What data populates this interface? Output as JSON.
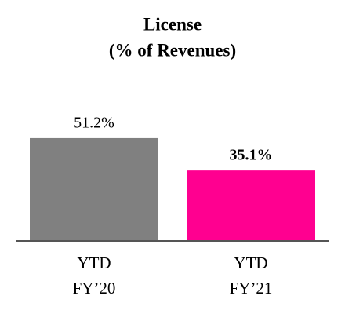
{
  "chart_data": {
    "type": "bar",
    "title": "License",
    "subtitle": "(% of Revenues)",
    "categories": [
      [
        "YTD",
        "FY’20"
      ],
      [
        "YTD",
        "FY’21"
      ]
    ],
    "values": [
      51.2,
      35.1
    ],
    "value_labels": [
      "51.2%",
      "35.1%"
    ],
    "colors": [
      "#808080",
      "#ff0090"
    ],
    "value_label_bold": [
      false,
      true
    ]
  }
}
